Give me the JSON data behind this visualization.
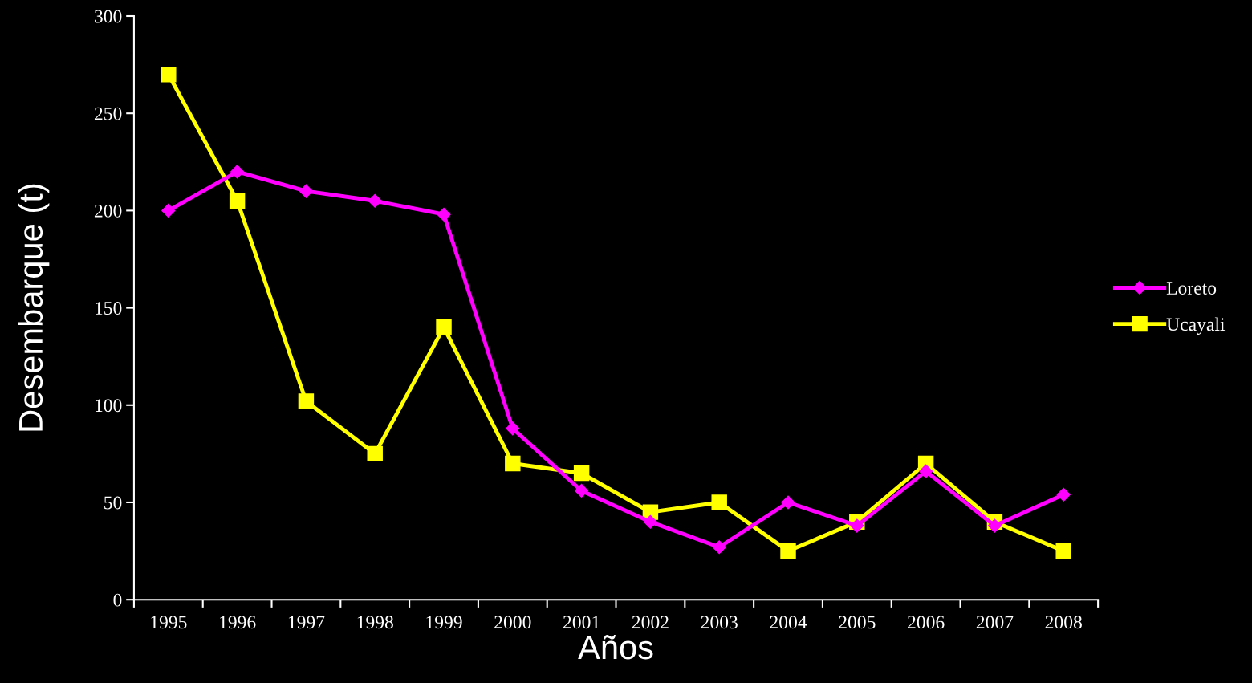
{
  "chart_data": {
    "type": "line",
    "xlabel": "Años",
    "ylabel": "Desembarque (t)",
    "categories": [
      "1995",
      "1996",
      "1997",
      "1998",
      "1999",
      "2000",
      "2001",
      "2002",
      "2003",
      "2004",
      "2005",
      "2006",
      "2007",
      "2008"
    ],
    "series": [
      {
        "name": "Loreto",
        "color": "#ff00ff",
        "marker": "diamond",
        "values": [
          200,
          220,
          210,
          205,
          198,
          88,
          56,
          40,
          27,
          50,
          38,
          66,
          38,
          54
        ]
      },
      {
        "name": "Ucayali",
        "color": "#ffff00",
        "marker": "square",
        "values": [
          270,
          205,
          102,
          75,
          140,
          70,
          65,
          45,
          50,
          25,
          40,
          70,
          40,
          25
        ]
      }
    ],
    "ylim": [
      0,
      300
    ],
    "yticks": [
      0,
      50,
      100,
      150,
      200,
      250,
      300
    ],
    "grid": false,
    "legend": "right",
    "line_style": "solid"
  }
}
